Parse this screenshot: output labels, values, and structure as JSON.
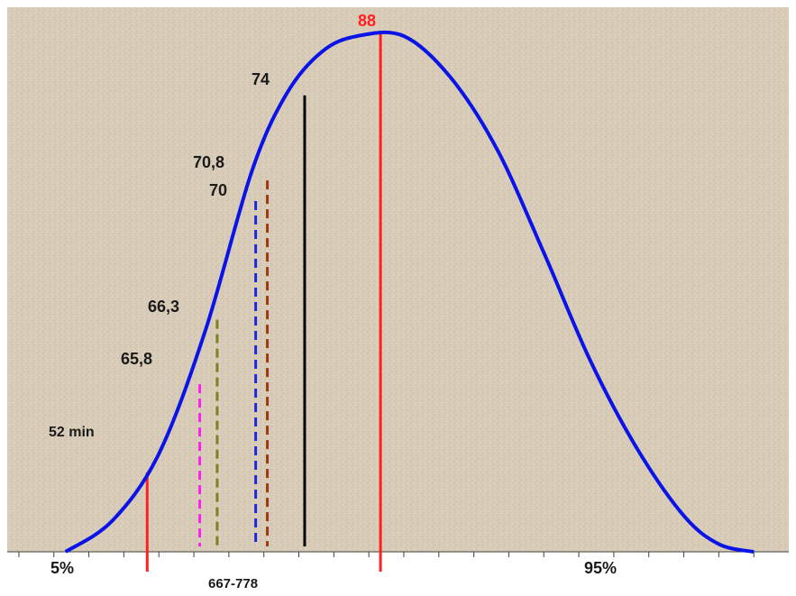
{
  "colors": {
    "background": "#d8ccb8",
    "curve": "#0a14e6",
    "axis": "#404040"
  },
  "chart_data": {
    "type": "line",
    "title": "",
    "xlabel": "",
    "ylabel": "",
    "grid": false,
    "legend": "none",
    "x_labels": [
      {
        "id": "p5",
        "text": "5%",
        "x": 59
      },
      {
        "id": "range",
        "text": "667-778",
        "x": 101
      },
      {
        "id": "p95",
        "text": "95%",
        "x": 143
      }
    ],
    "curve": {
      "name": "",
      "color": "#0a14e6",
      "points": [
        [
          59,
          0
        ],
        [
          63,
          0.06
        ],
        [
          67,
          0.19
        ],
        [
          71,
          0.43
        ],
        [
          75,
          0.74
        ],
        [
          78,
          0.89
        ],
        [
          81,
          0.97
        ],
        [
          84,
          1.0
        ],
        [
          88,
          1.0
        ],
        [
          92,
          0.92
        ],
        [
          96,
          0.78
        ],
        [
          100,
          0.58
        ],
        [
          104,
          0.37
        ],
        [
          108,
          0.2
        ],
        [
          112,
          0.07
        ],
        [
          115,
          0.015
        ],
        [
          118,
          0
        ]
      ]
    },
    "markers": [
      {
        "id": "52min",
        "label": "52 min",
        "x": 66,
        "top": 0.154,
        "color": "#ff2020",
        "style": "solid",
        "below_axis": true
      },
      {
        "id": "65-8",
        "label": "65,8",
        "x": 70.5,
        "top": 0.325,
        "color": "#ff22ee",
        "style": "dashed"
      },
      {
        "id": "66-3",
        "label": "66,3",
        "x": 72,
        "top": 0.45,
        "color": "#808020",
        "style": "dashed"
      },
      {
        "id": "70",
        "label": "70",
        "x": 75.3,
        "top": 0.68,
        "color": "#1a2ad8",
        "style": "dashed"
      },
      {
        "id": "70-8",
        "label": "70,8",
        "x": 76.3,
        "top": 0.72,
        "color": "#9a3a10",
        "style": "dashed"
      },
      {
        "id": "74",
        "label": "74",
        "x": 79.5,
        "top": 0.885,
        "color": "#000000",
        "style": "solid"
      },
      {
        "id": "88",
        "label": "88",
        "x": 86,
        "top": 1.0,
        "color": "#ff2020",
        "style": "solid",
        "below_axis": true,
        "label_color": "#ff2020"
      }
    ],
    "xlim": [
      54,
      121
    ],
    "ylim": [
      0,
      1.0
    ]
  }
}
